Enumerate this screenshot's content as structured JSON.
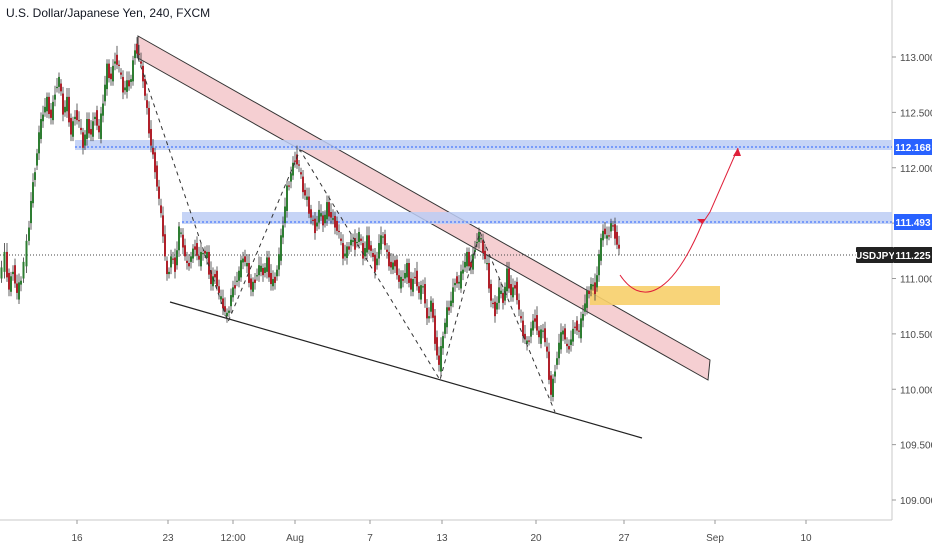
{
  "chart_data": {
    "type": "candlestick",
    "title": "U.S. Dollar/Japanese Yen, 240, FXCM",
    "symbol": "USDJPY",
    "last_price": "111.225",
    "y_axis": {
      "range": [
        108.9,
        113.3
      ],
      "ticks": [
        "113.000",
        "112.500",
        "112.000",
        "111.500",
        "111.000",
        "110.500",
        "110.000",
        "109.500",
        "109.000"
      ]
    },
    "x_axis": {
      "ticks": [
        "16",
        "23",
        "12:00",
        "Aug",
        "7",
        "13",
        "20",
        "27",
        "Sep",
        "10"
      ]
    },
    "levels": [
      {
        "label": "112.168",
        "price": 112.168,
        "color": "#2962ff"
      },
      {
        "label": "111.493",
        "price": 111.493,
        "color": "#2962ff"
      }
    ],
    "price_path": [
      [
        0,
        111.0
      ],
      [
        6,
        111.2
      ],
      [
        10,
        110.9
      ],
      [
        14,
        111.1
      ],
      [
        18,
        110.85
      ],
      [
        22,
        111.0
      ],
      [
        28,
        111.3
      ],
      [
        32,
        111.7
      ],
      [
        36,
        112.0
      ],
      [
        40,
        112.3
      ],
      [
        44,
        112.5
      ],
      [
        48,
        112.6
      ],
      [
        52,
        112.45
      ],
      [
        56,
        112.7
      ],
      [
        60,
        112.8
      ],
      [
        64,
        112.5
      ],
      [
        68,
        112.6
      ],
      [
        72,
        112.3
      ],
      [
        76,
        112.5
      ],
      [
        80,
        112.4
      ],
      [
        84,
        112.2
      ],
      [
        88,
        112.4
      ],
      [
        92,
        112.3
      ],
      [
        96,
        112.5
      ],
      [
        100,
        112.3
      ],
      [
        104,
        112.6
      ],
      [
        108,
        112.9
      ],
      [
        112,
        112.8
      ],
      [
        116,
        113.0
      ],
      [
        120,
        112.9
      ],
      [
        124,
        112.7
      ],
      [
        128,
        112.75
      ],
      [
        132,
        112.8
      ],
      [
        136,
        113.1
      ],
      [
        140,
        113.0
      ],
      [
        144,
        112.8
      ],
      [
        148,
        112.5
      ],
      [
        152,
        112.2
      ],
      [
        156,
        112.0
      ],
      [
        160,
        111.7
      ],
      [
        164,
        111.4
      ],
      [
        168,
        111.0
      ],
      [
        172,
        111.2
      ],
      [
        176,
        111.1
      ],
      [
        180,
        111.45
      ],
      [
        184,
        111.3
      ],
      [
        188,
        111.1
      ],
      [
        192,
        111.2
      ],
      [
        196,
        111.3
      ],
      [
        200,
        111.15
      ],
      [
        204,
        111.25
      ],
      [
        208,
        111.2
      ],
      [
        212,
        110.95
      ],
      [
        216,
        111.05
      ],
      [
        220,
        110.85
      ],
      [
        224,
        110.75
      ],
      [
        228,
        110.65
      ],
      [
        232,
        110.85
      ],
      [
        236,
        110.95
      ],
      [
        240,
        111.05
      ],
      [
        244,
        111.2
      ],
      [
        248,
        111.1
      ],
      [
        252,
        110.9
      ],
      [
        256,
        111.0
      ],
      [
        260,
        111.1
      ],
      [
        264,
        111.05
      ],
      [
        268,
        111.15
      ],
      [
        272,
        110.95
      ],
      [
        276,
        111.0
      ],
      [
        280,
        111.2
      ],
      [
        284,
        111.5
      ],
      [
        288,
        111.8
      ],
      [
        292,
        111.95
      ],
      [
        296,
        112.1
      ],
      [
        300,
        112.0
      ],
      [
        304,
        111.8
      ],
      [
        308,
        111.7
      ],
      [
        312,
        111.55
      ],
      [
        316,
        111.45
      ],
      [
        320,
        111.6
      ],
      [
        324,
        111.5
      ],
      [
        328,
        111.65
      ],
      [
        332,
        111.55
      ],
      [
        336,
        111.5
      ],
      [
        340,
        111.4
      ],
      [
        344,
        111.2
      ],
      [
        348,
        111.25
      ],
      [
        352,
        111.35
      ],
      [
        356,
        111.3
      ],
      [
        360,
        111.4
      ],
      [
        364,
        111.2
      ],
      [
        368,
        111.35
      ],
      [
        372,
        111.25
      ],
      [
        376,
        111.1
      ],
      [
        380,
        111.3
      ],
      [
        384,
        111.4
      ],
      [
        388,
        111.2
      ],
      [
        392,
        111.1
      ],
      [
        396,
        111.15
      ],
      [
        400,
        110.95
      ],
      [
        404,
        111.0
      ],
      [
        408,
        111.1
      ],
      [
        412,
        110.9
      ],
      [
        416,
        111.05
      ],
      [
        420,
        110.85
      ],
      [
        424,
        110.95
      ],
      [
        428,
        110.6
      ],
      [
        432,
        110.8
      ],
      [
        436,
        110.45
      ],
      [
        440,
        110.2
      ],
      [
        444,
        110.5
      ],
      [
        448,
        110.7
      ],
      [
        452,
        110.8
      ],
      [
        456,
        111.0
      ],
      [
        460,
        110.95
      ],
      [
        464,
        111.1
      ],
      [
        468,
        111.2
      ],
      [
        472,
        111.1
      ],
      [
        476,
        111.3
      ],
      [
        480,
        111.4
      ],
      [
        484,
        111.25
      ],
      [
        488,
        111.1
      ],
      [
        492,
        110.8
      ],
      [
        496,
        110.7
      ],
      [
        500,
        110.9
      ],
      [
        504,
        110.8
      ],
      [
        508,
        111.05
      ],
      [
        512,
        110.85
      ],
      [
        516,
        110.95
      ],
      [
        520,
        110.7
      ],
      [
        524,
        110.5
      ],
      [
        528,
        110.4
      ],
      [
        532,
        110.55
      ],
      [
        536,
        110.65
      ],
      [
        540,
        110.45
      ],
      [
        544,
        110.55
      ],
      [
        548,
        110.3
      ],
      [
        552,
        109.95
      ],
      [
        556,
        110.2
      ],
      [
        560,
        110.4
      ],
      [
        564,
        110.55
      ],
      [
        568,
        110.35
      ],
      [
        572,
        110.45
      ],
      [
        576,
        110.6
      ],
      [
        580,
        110.5
      ],
      [
        584,
        110.7
      ],
      [
        588,
        110.85
      ],
      [
        592,
        110.95
      ],
      [
        596,
        110.9
      ],
      [
        600,
        111.2
      ],
      [
        604,
        111.45
      ],
      [
        608,
        111.35
      ],
      [
        612,
        111.5
      ],
      [
        616,
        111.4
      ],
      [
        620,
        111.25
      ]
    ]
  }
}
